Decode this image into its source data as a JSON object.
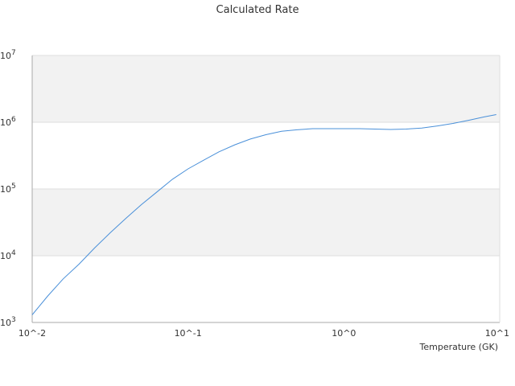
{
  "chart_data": {
    "type": "line",
    "title": "Calculated Rate",
    "xlabel": "Temperature (GK)",
    "ylabel": "",
    "x_scale": "log",
    "y_scale": "log",
    "xlim": [
      0.01,
      10
    ],
    "ylim": [
      1000,
      10000000
    ],
    "x_ticks": [
      {
        "value": 0.01,
        "base": "10",
        "exp": "-2"
      },
      {
        "value": 0.1,
        "base": "10",
        "exp": "-1"
      },
      {
        "value": 1,
        "base": "10",
        "exp": "0"
      },
      {
        "value": 10,
        "base": "10",
        "exp": "1"
      }
    ],
    "y_ticks": [
      {
        "value": 1000,
        "base": "10",
        "exp": "3"
      },
      {
        "value": 10000,
        "base": "10",
        "exp": "4"
      },
      {
        "value": 100000,
        "base": "10",
        "exp": "5"
      },
      {
        "value": 1000000,
        "base": "10",
        "exp": "6"
      },
      {
        "value": 10000000,
        "base": "10",
        "exp": "7"
      }
    ],
    "x_tick_separator": "^",
    "grid": "horizontal bands",
    "legend": "none",
    "series": [
      {
        "color": "#4a90d9",
        "x": [
          0.01,
          0.0126,
          0.0158,
          0.02,
          0.0251,
          0.0316,
          0.0398,
          0.0501,
          0.0631,
          0.0794,
          0.1,
          0.126,
          0.158,
          0.2,
          0.251,
          0.316,
          0.398,
          0.501,
          0.631,
          0.794,
          1.0,
          1.26,
          1.58,
          2.0,
          2.51,
          3.16,
          3.98,
          5.01,
          6.31,
          7.94,
          9.5
        ],
        "y": [
          1300,
          2500,
          4500,
          7500,
          13000,
          22000,
          36000,
          58000,
          90000,
          140000,
          200000,
          270000,
          360000,
          460000,
          560000,
          650000,
          730000,
          770000,
          800000,
          800000,
          800000,
          800000,
          790000,
          780000,
          790000,
          820000,
          880000,
          960000,
          1070000,
          1200000,
          1300000
        ]
      }
    ]
  },
  "colors": {
    "band": "#f2f2f2",
    "axis": "#aaaaaa",
    "grid": "#dddddd",
    "line": "#4a90d9"
  }
}
